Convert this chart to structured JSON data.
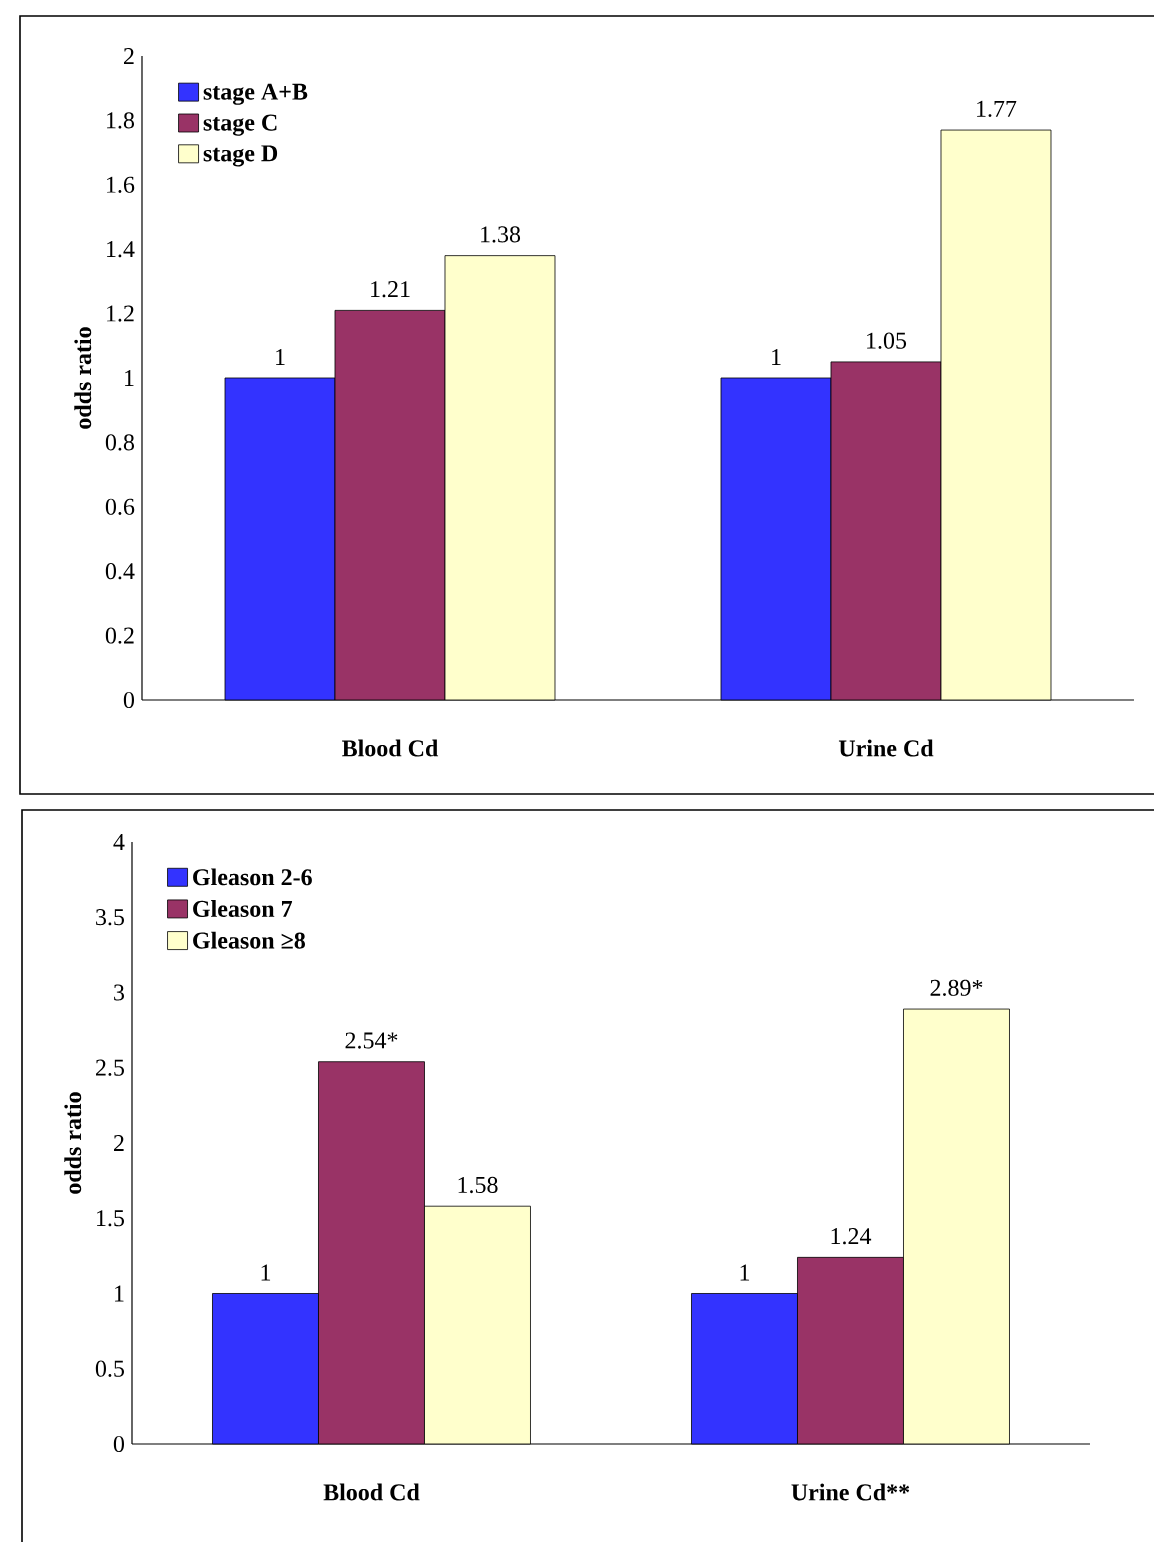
{
  "chart_data": [
    {
      "type": "bar",
      "ylabel": "odds ratio",
      "categories": [
        "Blood Cd",
        "Urine Cd"
      ],
      "series": [
        {
          "name": "stage A+B",
          "color": "#3333ff",
          "values": [
            1,
            1
          ],
          "value_labels": [
            "1",
            "1"
          ]
        },
        {
          "name": "stage C",
          "color": "#993366",
          "values": [
            1.21,
            1.05
          ],
          "value_labels": [
            "1.21",
            "1.05"
          ]
        },
        {
          "name": "stage D",
          "color": "#ffffcc",
          "values": [
            1.38,
            1.77
          ],
          "value_labels": [
            "1.38",
            "1.77"
          ]
        }
      ],
      "ylim": [
        0,
        2
      ],
      "yticks": [
        0,
        0.2,
        0.4,
        0.6,
        0.8,
        1,
        1.2,
        1.4,
        1.6,
        1.8,
        2
      ],
      "legend": "top left",
      "grid": false
    },
    {
      "type": "bar",
      "ylabel": "odds ratio",
      "categories": [
        "Blood Cd",
        "Urine Cd**"
      ],
      "series": [
        {
          "name": "Gleason 2-6",
          "color": "#3333ff",
          "values": [
            1,
            1
          ],
          "value_labels": [
            "1",
            "1"
          ]
        },
        {
          "name": "Gleason 7",
          "color": "#993366",
          "values": [
            2.54,
            1.24
          ],
          "value_labels": [
            "2.54*",
            "1.24"
          ]
        },
        {
          "name": "Gleason  ≥8",
          "color": "#ffffcc",
          "values": [
            1.58,
            2.89
          ],
          "value_labels": [
            "1.58",
            "2.89*"
          ]
        }
      ],
      "ylim": [
        0,
        4
      ],
      "yticks": [
        0,
        0.5,
        1,
        1.5,
        2,
        2.5,
        3,
        3.5,
        4
      ],
      "legend": "top left",
      "grid": false
    }
  ]
}
